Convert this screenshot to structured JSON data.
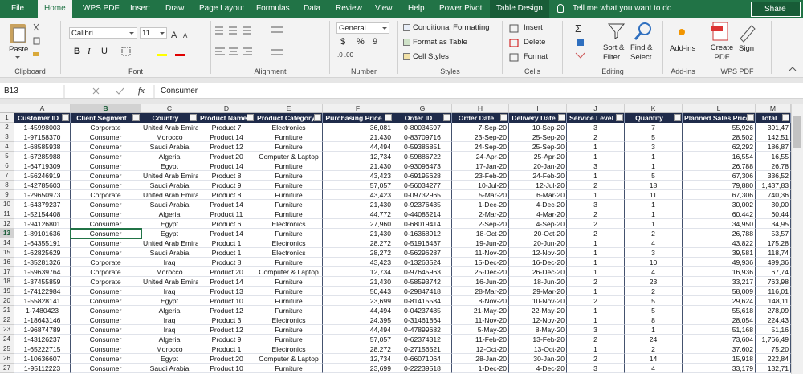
{
  "tabs": [
    "File",
    "Home",
    "WPS PDF",
    "Insert",
    "Draw",
    "Page Layout",
    "Formulas",
    "Data",
    "Review",
    "View",
    "Help",
    "Power Pivot",
    "Table Design"
  ],
  "tell_me": "Tell me what you want to do",
  "share": "Share",
  "ribbon": {
    "paste": "Paste",
    "font_name": "Calibri",
    "font_size": "11",
    "font_buttons": [
      "B",
      "I",
      "U"
    ],
    "number_format": "General",
    "number_buttons": [
      "$",
      "%",
      "9"
    ],
    "styles": [
      "Conditional Formatting",
      "Format as Table",
      "Cell Styles"
    ],
    "cells": [
      "Insert",
      "Delete",
      "Format"
    ],
    "sort_filter": "Sort & Filter",
    "find_select": "Find & Select",
    "add_ins": "Add-ins",
    "create_pdf": "Create PDF",
    "sign": "Sign",
    "groups": [
      "Clipboard",
      "Font",
      "Alignment",
      "Number",
      "Styles",
      "Cells",
      "Editing",
      "Add-ins",
      "WPS PDF"
    ]
  },
  "name_box": "B13",
  "fx": "fx",
  "formula": "Consumer",
  "columns": [
    "A",
    "B",
    "C",
    "D",
    "E",
    "F",
    "G",
    "H",
    "I",
    "J",
    "K",
    "L",
    "M"
  ],
  "row_numbers": [
    1,
    2,
    3,
    4,
    5,
    6,
    7,
    8,
    9,
    10,
    11,
    12,
    13,
    14,
    15,
    16,
    17,
    18,
    19,
    20,
    21,
    22,
    23,
    24,
    25,
    26,
    27
  ],
  "table": {
    "header": [
      "Customer ID",
      "Client Segment",
      "Country",
      "Product Name",
      "Product Category",
      "Purchasing Price",
      "Order ID",
      "Order Date",
      "Delivery Date",
      "Service Level",
      "Quantity",
      "Planned Sales Price",
      "Total"
    ],
    "rows": [
      [
        "1-45998003",
        "Corporate",
        "United Arab Emirates",
        "Product 7",
        "Electronics",
        "36,081",
        "0-80034597",
        "7-Sep-20",
        "10-Sep-20",
        "3",
        "7",
        "55,926",
        "391,47"
      ],
      [
        "1-97158370",
        "Consumer",
        "Morocco",
        "Product 14",
        "Furniture",
        "21,430",
        "0-83709716",
        "23-Sep-20",
        "25-Sep-20",
        "2",
        "5",
        "28,502",
        "142,51"
      ],
      [
        "1-68585938",
        "Consumer",
        "Saudi Arabia",
        "Product 12",
        "Furniture",
        "44,494",
        "0-59386851",
        "24-Sep-20",
        "25-Sep-20",
        "1",
        "3",
        "62,292",
        "186,87"
      ],
      [
        "1-67285988",
        "Consumer",
        "Algeria",
        "Product 20",
        "Computer & Laptop",
        "12,734",
        "0-59886722",
        "24-Apr-20",
        "25-Apr-20",
        "1",
        "1",
        "16,554",
        "16,55"
      ],
      [
        "1-64719309",
        "Consumer",
        "Egypt",
        "Product 14",
        "Furniture",
        "21,430",
        "0-93096473",
        "17-Jan-20",
        "20-Jan-20",
        "3",
        "1",
        "26,788",
        "26,78"
      ],
      [
        "1-56246919",
        "Consumer",
        "United Arab Emirates",
        "Product 8",
        "Furniture",
        "43,423",
        "0-69195628",
        "23-Feb-20",
        "24-Feb-20",
        "1",
        "5",
        "67,306",
        "336,52"
      ],
      [
        "1-42785603",
        "Consumer",
        "Saudi Arabia",
        "Product 9",
        "Furniture",
        "57,057",
        "0-56034277",
        "10-Jul-20",
        "12-Jul-20",
        "2",
        "18",
        "79,880",
        "1,437,83"
      ],
      [
        "1-29650973",
        "Corporate",
        "United Arab Emirates",
        "Product 8",
        "Furniture",
        "43,423",
        "0-09732965",
        "5-Mar-20",
        "6-Mar-20",
        "1",
        "11",
        "67,306",
        "740,36"
      ],
      [
        "1-64379237",
        "Consumer",
        "Saudi Arabia",
        "Product 14",
        "Furniture",
        "21,430",
        "0-92376435",
        "1-Dec-20",
        "4-Dec-20",
        "3",
        "1",
        "30,002",
        "30,00"
      ],
      [
        "1-52154408",
        "Consumer",
        "Algeria",
        "Product 11",
        "Furniture",
        "44,772",
        "0-44085214",
        "2-Mar-20",
        "4-Mar-20",
        "2",
        "1",
        "60,442",
        "60,44"
      ],
      [
        "1-94126801",
        "Consumer",
        "Egypt",
        "Product 6",
        "Electronics",
        "27,960",
        "0-68019414",
        "2-Sep-20",
        "4-Sep-20",
        "2",
        "1",
        "34,950",
        "34,95"
      ],
      [
        "1-89101636",
        "Consumer",
        "Egypt",
        "Product 14",
        "Furniture",
        "21,430",
        "0-16368912",
        "18-Oct-20",
        "20-Oct-20",
        "2",
        "2",
        "26,788",
        "53,57"
      ],
      [
        "1-64355191",
        "Consumer",
        "United Arab Emirates",
        "Product 1",
        "Electronics",
        "28,272",
        "0-51916437",
        "19-Jun-20",
        "20-Jun-20",
        "1",
        "4",
        "43,822",
        "175,28"
      ],
      [
        "1-62825629",
        "Consumer",
        "Saudi Arabia",
        "Product 1",
        "Electronics",
        "28,272",
        "0-56296287",
        "11-Nov-20",
        "12-Nov-20",
        "1",
        "3",
        "39,581",
        "118,74"
      ],
      [
        "1-35281326",
        "Corporate",
        "Iraq",
        "Product 8",
        "Furniture",
        "43,423",
        "0-13263524",
        "15-Dec-20",
        "16-Dec-20",
        "1",
        "10",
        "49,936",
        "499,36"
      ],
      [
        "1-59639764",
        "Corporate",
        "Morocco",
        "Product 20",
        "Computer & Laptop",
        "12,734",
        "0-97645963",
        "25-Dec-20",
        "26-Dec-20",
        "1",
        "4",
        "16,936",
        "67,74"
      ],
      [
        "1-37455859",
        "Corporate",
        "United Arab Emirates",
        "Product 14",
        "Furniture",
        "21,430",
        "0-58593742",
        "16-Jun-20",
        "18-Jun-20",
        "2",
        "23",
        "33,217",
        "763,98"
      ],
      [
        "1-74122984",
        "Consumer",
        "Iraq",
        "Product 13",
        "Furniture",
        "50,443",
        "0-29847418",
        "28-Mar-20",
        "29-Mar-20",
        "1",
        "2",
        "58,009",
        "116,01"
      ],
      [
        "1-55828141",
        "Consumer",
        "Egypt",
        "Product 10",
        "Furniture",
        "23,699",
        "0-81415584",
        "8-Nov-20",
        "10-Nov-20",
        "2",
        "5",
        "29,624",
        "148,11"
      ],
      [
        "1-7480423",
        "Consumer",
        "Algeria",
        "Product 12",
        "Furniture",
        "44,494",
        "0-04237485",
        "21-May-20",
        "22-May-20",
        "1",
        "5",
        "55,618",
        "278,09"
      ],
      [
        "1-18643146",
        "Consumer",
        "Iraq",
        "Product 3",
        "Electronics",
        "24,395",
        "0-31461864",
        "11-Nov-20",
        "12-Nov-20",
        "1",
        "8",
        "28,054",
        "224,43"
      ],
      [
        "1-96874789",
        "Consumer",
        "Iraq",
        "Product 12",
        "Furniture",
        "44,494",
        "0-47899682",
        "5-May-20",
        "8-May-20",
        "3",
        "1",
        "51,168",
        "51,16"
      ],
      [
        "1-43126237",
        "Consumer",
        "Algeria",
        "Product 9",
        "Furniture",
        "57,057",
        "0-62374312",
        "11-Feb-20",
        "13-Feb-20",
        "2",
        "24",
        "73,604",
        "1,766,49"
      ],
      [
        "1-65222715",
        "Consumer",
        "Morocco",
        "Product 1",
        "Electronics",
        "28,272",
        "0-27156521",
        "12-Oct-20",
        "13-Oct-20",
        "1",
        "2",
        "37,602",
        "75,20"
      ],
      [
        "1-10636607",
        "Consumer",
        "Egypt",
        "Product 20",
        "Computer & Laptop",
        "12,734",
        "0-66071064",
        "28-Jan-20",
        "30-Jan-20",
        "2",
        "14",
        "15,918",
        "222,84"
      ],
      [
        "1-95112223",
        "Consumer",
        "Saudi Arabia",
        "Product 10",
        "Furniture",
        "23,699",
        "0-22239518",
        "1-Dec-20",
        "4-Dec-20",
        "3",
        "4",
        "33,179",
        "132,71"
      ]
    ]
  }
}
